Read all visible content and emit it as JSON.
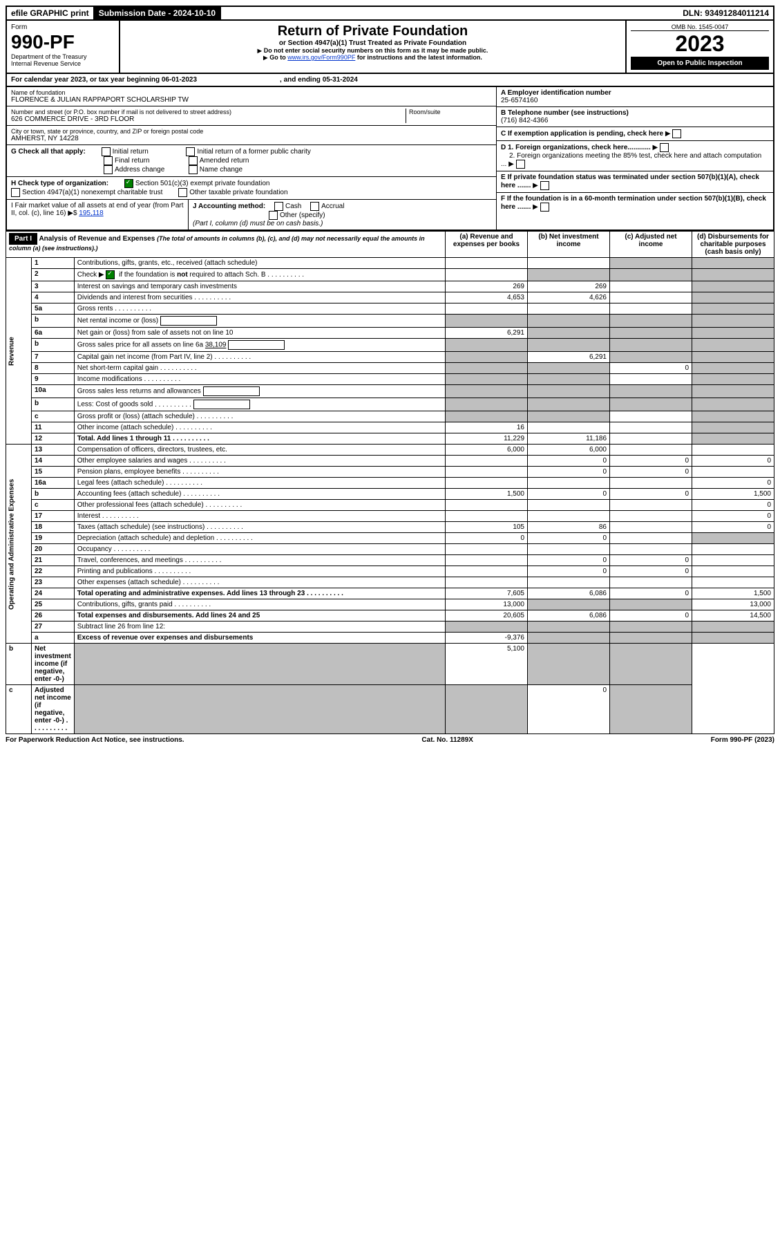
{
  "topbar": {
    "efile": "efile GRAPHIC print",
    "sub_label": "Submission Date - 2024-10-10",
    "dln": "DLN: 93491284011214"
  },
  "hdr": {
    "form": "Form",
    "num": "990-PF",
    "dept": "Department of the Treasury",
    "irs": "Internal Revenue Service",
    "title": "Return of Private Foundation",
    "subtitle": "or Section 4947(a)(1) Trust Treated as Private Foundation",
    "note1": "Do not enter social security numbers on this form as it may be made public.",
    "note2_pre": "Go to ",
    "note2_link": "www.irs.gov/Form990PF",
    "note2_post": " for instructions and the latest information.",
    "omb": "OMB No. 1545-0047",
    "year": "2023",
    "open": "Open to Public Inspection"
  },
  "yr": {
    "text": "For calendar year 2023, or tax year beginning 06-01-2023",
    "end": ", and ending 05-31-2024"
  },
  "info": {
    "name_lbl": "Name of foundation",
    "name": "FLORENCE & JULIAN RAPPAPORT SCHOLARSHIP TW",
    "addr_lbl": "Number and street (or P.O. box number if mail is not delivered to street address)",
    "addr": "626 COMMERCE DRIVE - 3RD FLOOR",
    "room": "Room/suite",
    "city_lbl": "City or town, state or province, country, and ZIP or foreign postal code",
    "city": "AMHERST, NY  14228",
    "a": "A Employer identification number",
    "a_v": "25-6574160",
    "b": "B Telephone number (see instructions)",
    "b_v": "(716) 842-4366",
    "c": "C If exemption application is pending, check here",
    "d1": "D 1. Foreign organizations, check here............",
    "d2": "2. Foreign organizations meeting the 85% test, check here and attach computation ...",
    "e": "E  If private foundation status was terminated under section 507(b)(1)(A), check here .......",
    "f": "F  If the foundation is in a 60-month termination under section 507(b)(1)(B), check here ......."
  },
  "g": {
    "lbl": "G Check all that apply:",
    "o": [
      "Initial return",
      "Final return",
      "Address change",
      "Initial return of a former public charity",
      "Amended return",
      "Name change"
    ]
  },
  "h": {
    "lbl": "H Check type of organization:",
    "o1": "Section 501(c)(3) exempt private foundation",
    "o2": "Section 4947(a)(1) nonexempt charitable trust",
    "o3": "Other taxable private foundation"
  },
  "i": {
    "lbl": "I Fair market value of all assets at end of year (from Part II, col. (c), line 16)",
    "v": "195,118"
  },
  "j": {
    "lbl": "J Accounting method:",
    "o1": "Cash",
    "o2": "Accrual",
    "o3": "Other (specify)",
    "note": "(Part I, column (d) must be on cash basis.)"
  },
  "p1": {
    "hdr": "Part I",
    "title": "Analysis of Revenue and Expenses",
    "note": "(The total of amounts in columns (b), (c), and (d) may not necessarily equal the amounts in column (a) (see instructions).)",
    "cols": [
      "(a)  Revenue and expenses per books",
      "(b)  Net investment income",
      "(c)  Adjusted net income",
      "(d)  Disbursements for charitable purposes (cash basis only)"
    ]
  },
  "sec": {
    "rev": "Revenue",
    "exp": "Operating and Administrative Expenses"
  },
  "rows": [
    {
      "n": "1",
      "d": "Contributions, gifts, grants, etc., received (attach schedule)",
      "a": "",
      "b": "",
      "c": "s",
      "e": "s"
    },
    {
      "n": "2",
      "d": "Check ▶ ☑ if the foundation is not required to attach Sch. B",
      "dots": true,
      "a": "",
      "b": "s",
      "c": "s",
      "e": "s"
    },
    {
      "n": "3",
      "d": "Interest on savings and temporary cash investments",
      "a": "269",
      "b": "269",
      "c": "",
      "e": "s"
    },
    {
      "n": "4",
      "d": "Dividends and interest from securities",
      "dots": true,
      "a": "4,653",
      "b": "4,626",
      "c": "",
      "e": "s"
    },
    {
      "n": "5a",
      "d": "Gross rents",
      "dots": true,
      "a": "",
      "b": "",
      "c": "",
      "e": "s"
    },
    {
      "n": "b",
      "d": "Net rental income or (loss)",
      "box": true,
      "a": "s",
      "b": "s",
      "c": "s",
      "e": "s"
    },
    {
      "n": "6a",
      "d": "Net gain or (loss) from sale of assets not on line 10",
      "a": "6,291",
      "b": "s",
      "c": "s",
      "e": "s"
    },
    {
      "n": "b",
      "d": "Gross sales price for all assets on line 6a",
      "v": "38,109",
      "box": true,
      "a": "s",
      "b": "s",
      "c": "s",
      "e": "s"
    },
    {
      "n": "7",
      "d": "Capital gain net income (from Part IV, line 2)",
      "dots": true,
      "a": "s",
      "b": "6,291",
      "c": "s",
      "e": "s"
    },
    {
      "n": "8",
      "d": "Net short-term capital gain",
      "dots": true,
      "a": "s",
      "b": "s",
      "c": "0",
      "e": "s"
    },
    {
      "n": "9",
      "d": "Income modifications",
      "dots": true,
      "a": "s",
      "b": "s",
      "c": "",
      "e": "s"
    },
    {
      "n": "10a",
      "d": "Gross sales less returns and allowances",
      "box": true,
      "a": "s",
      "b": "s",
      "c": "s",
      "e": "s"
    },
    {
      "n": "b",
      "d": "Less: Cost of goods sold",
      "dots": true,
      "box": true,
      "a": "s",
      "b": "s",
      "c": "s",
      "e": "s"
    },
    {
      "n": "c",
      "d": "Gross profit or (loss) (attach schedule)",
      "dots": true,
      "a": "s",
      "b": "s",
      "c": "",
      "e": "s"
    },
    {
      "n": "11",
      "d": "Other income (attach schedule)",
      "dots": true,
      "a": "16",
      "b": "",
      "c": "",
      "e": "s"
    },
    {
      "n": "12",
      "d": "Total. Add lines 1 through 11",
      "dots": true,
      "bold": true,
      "a": "11,229",
      "b": "11,186",
      "c": "",
      "e": "s"
    },
    {
      "n": "13",
      "d": "Compensation of officers, directors, trustees, etc.",
      "a": "6,000",
      "b": "6,000",
      "c": "",
      "e": ""
    },
    {
      "n": "14",
      "d": "Other employee salaries and wages",
      "dots": true,
      "a": "",
      "b": "0",
      "c": "0",
      "e": "0"
    },
    {
      "n": "15",
      "d": "Pension plans, employee benefits",
      "dots": true,
      "a": "",
      "b": "0",
      "c": "0",
      "e": ""
    },
    {
      "n": "16a",
      "d": "Legal fees (attach schedule)",
      "dots": true,
      "a": "",
      "b": "",
      "c": "",
      "e": "0"
    },
    {
      "n": "b",
      "d": "Accounting fees (attach schedule)",
      "dots": true,
      "a": "1,500",
      "b": "0",
      "c": "0",
      "e": "1,500"
    },
    {
      "n": "c",
      "d": "Other professional fees (attach schedule)",
      "dots": true,
      "a": "",
      "b": "",
      "c": "",
      "e": "0"
    },
    {
      "n": "17",
      "d": "Interest",
      "dots": true,
      "a": "",
      "b": "",
      "c": "",
      "e": "0"
    },
    {
      "n": "18",
      "d": "Taxes (attach schedule) (see instructions)",
      "dots": true,
      "a": "105",
      "b": "86",
      "c": "",
      "e": "0"
    },
    {
      "n": "19",
      "d": "Depreciation (attach schedule) and depletion",
      "dots": true,
      "a": "0",
      "b": "0",
      "c": "",
      "e": "s"
    },
    {
      "n": "20",
      "d": "Occupancy",
      "dots": true,
      "a": "",
      "b": "",
      "c": "",
      "e": ""
    },
    {
      "n": "21",
      "d": "Travel, conferences, and meetings",
      "dots": true,
      "a": "",
      "b": "0",
      "c": "0",
      "e": ""
    },
    {
      "n": "22",
      "d": "Printing and publications",
      "dots": true,
      "a": "",
      "b": "0",
      "c": "0",
      "e": ""
    },
    {
      "n": "23",
      "d": "Other expenses (attach schedule)",
      "dots": true,
      "a": "",
      "b": "",
      "c": "",
      "e": ""
    },
    {
      "n": "24",
      "d": "Total operating and administrative expenses. Add lines 13 through 23",
      "dots": true,
      "bold": true,
      "a": "7,605",
      "b": "6,086",
      "c": "0",
      "e": "1,500"
    },
    {
      "n": "25",
      "d": "Contributions, gifts, grants paid",
      "dots": true,
      "a": "13,000",
      "b": "s",
      "c": "s",
      "e": "13,000"
    },
    {
      "n": "26",
      "d": "Total expenses and disbursements. Add lines 24 and 25",
      "bold": true,
      "a": "20,605",
      "b": "6,086",
      "c": "0",
      "e": "14,500"
    },
    {
      "n": "27",
      "d": "Subtract line 26 from line 12:",
      "a": "s",
      "b": "s",
      "c": "s",
      "e": "s"
    },
    {
      "n": "a",
      "d": "Excess of revenue over expenses and disbursements",
      "bold": true,
      "a": "-9,376",
      "b": "s",
      "c": "s",
      "e": "s"
    },
    {
      "n": "b",
      "d": "Net investment income (if negative, enter -0-)",
      "bold": true,
      "a": "s",
      "b": "5,100",
      "c": "s",
      "e": "s"
    },
    {
      "n": "c",
      "d": "Adjusted net income (if negative, enter -0-)",
      "dots": true,
      "bold": true,
      "a": "s",
      "b": "s",
      "c": "0",
      "e": "s"
    }
  ],
  "ft": {
    "l": "For Paperwork Reduction Act Notice, see instructions.",
    "c": "Cat. No. 11289X",
    "r": "Form 990-PF (2023)"
  }
}
